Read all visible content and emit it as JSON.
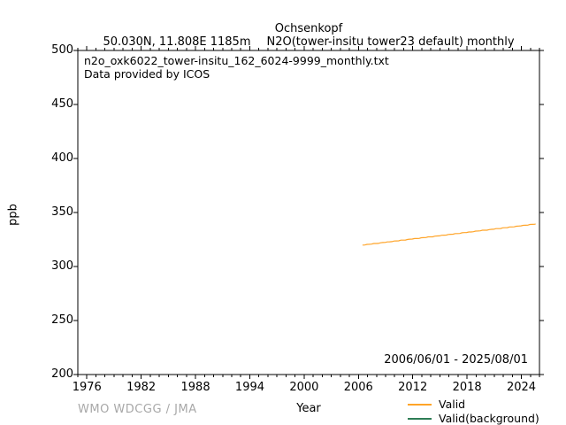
{
  "title": "Ochsenkopf",
  "subtitle": {
    "location": "50.030N, 11.808E 1185m",
    "dataset": "N2O(tower-insitu tower23 default) monthly"
  },
  "plot_annotations": {
    "file_label": "n2o_oxk6022_tower-insitu_162_6024-9999_monthly.txt",
    "provider_label": "Data provided by ICOS",
    "date_range": "2006/06/01 - 2025/08/01"
  },
  "footer": {
    "attribution": "WMO WDCGG / JMA"
  },
  "legend": [
    {
      "label": "Valid",
      "color": "#ffa428"
    },
    {
      "label": "Valid(background)",
      "color": "#2e7d55"
    }
  ],
  "chart_data": {
    "type": "line",
    "title": "Ochsenkopf",
    "xlabel": "Year",
    "ylabel": "ppb",
    "xlim": [
      1975,
      2026
    ],
    "ylim": [
      200,
      500
    ],
    "grid": false,
    "legend_position": "bottom-right-outside",
    "xticks": [
      1976,
      1982,
      1988,
      1994,
      2000,
      2006,
      2012,
      2018,
      2024
    ],
    "yticks": [
      200,
      250,
      300,
      350,
      400,
      450,
      500
    ],
    "x_minor_step": 1,
    "series": [
      {
        "name": "Valid",
        "color": "#ffa428",
        "x": [
          2006.45,
          2006.7,
          2006.95,
          2007.2,
          2007.45,
          2007.7,
          2007.95,
          2008.2,
          2008.45,
          2008.7,
          2008.95,
          2009.2,
          2009.45,
          2009.7,
          2009.95,
          2010.2,
          2010.45,
          2010.7,
          2010.95,
          2011.2,
          2011.45,
          2011.7,
          2011.95,
          2012.2,
          2012.45,
          2012.7,
          2012.95,
          2013.2,
          2013.45,
          2013.7,
          2013.95,
          2014.2,
          2014.45,
          2014.7,
          2014.95,
          2015.2,
          2015.45,
          2015.7,
          2015.95,
          2016.2,
          2016.45,
          2016.7,
          2016.95,
          2017.2,
          2017.45,
          2017.7,
          2017.95,
          2018.2,
          2018.45,
          2018.7,
          2018.95,
          2019.2,
          2019.45,
          2019.7,
          2019.95,
          2020.2,
          2020.45,
          2020.7,
          2020.95,
          2021.2,
          2021.45,
          2021.7,
          2021.95,
          2022.2,
          2022.45,
          2022.7,
          2022.95,
          2023.2,
          2023.45,
          2023.7,
          2023.95,
          2024.2,
          2024.45,
          2024.7,
          2024.95,
          2025.2,
          2025.45,
          2025.58
        ],
        "y": [
          319.8,
          319.9,
          320.5,
          320.6,
          320.7,
          321.3,
          321.3,
          321.4,
          322.0,
          322.2,
          322.3,
          322.8,
          322.9,
          323.0,
          323.6,
          323.7,
          323.8,
          324.4,
          324.4,
          324.5,
          325.1,
          325.3,
          325.4,
          325.9,
          325.9,
          326.0,
          326.6,
          326.7,
          326.8,
          327.5,
          327.5,
          327.5,
          328.1,
          328.3,
          328.4,
          328.9,
          329.0,
          329.1,
          329.7,
          329.8,
          329.9,
          330.5,
          330.5,
          330.6,
          331.2,
          331.4,
          331.5,
          332.0,
          332.0,
          332.2,
          332.8,
          332.9,
          333.0,
          333.6,
          333.6,
          333.6,
          334.2,
          334.4,
          334.5,
          335.1,
          335.1,
          335.2,
          335.8,
          335.9,
          336.0,
          336.6,
          336.6,
          336.7,
          337.3,
          337.5,
          337.6,
          338.1,
          338.2,
          338.3,
          338.9,
          339.0,
          339.1,
          339.4
        ]
      },
      {
        "name": "Valid(background)",
        "color": "#2e7d55",
        "x": [],
        "y": []
      }
    ]
  }
}
